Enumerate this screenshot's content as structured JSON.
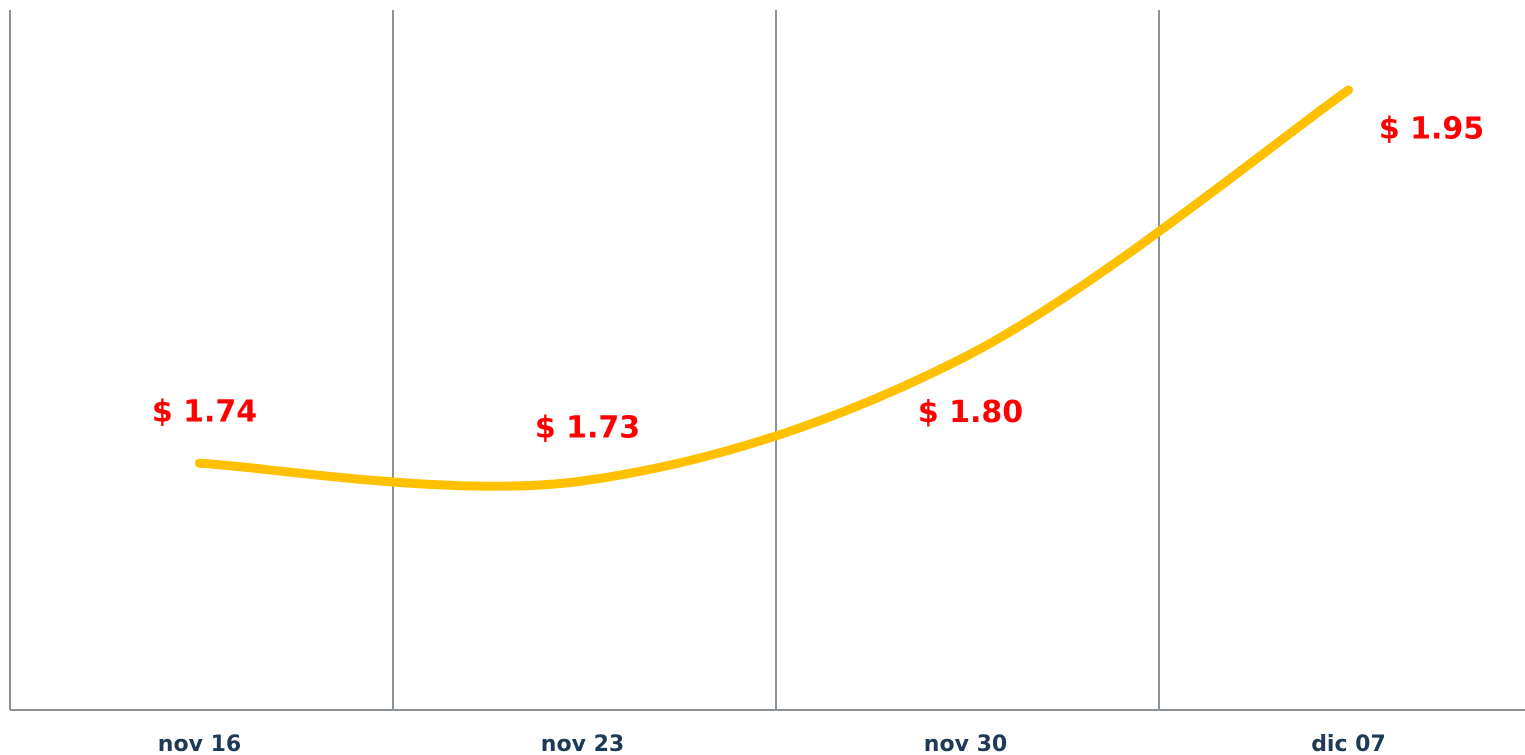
{
  "chart_data": {
    "type": "line",
    "categories": [
      "nov 16",
      "nov 23",
      "nov 30",
      "dic 07"
    ],
    "values": [
      1.74,
      1.73,
      1.8,
      1.95
    ],
    "value_labels": [
      "$ 1.74",
      "$ 1.73",
      "$ 1.80",
      "$ 1.95"
    ],
    "color": "#ffc000",
    "label_color": "#ff0000"
  }
}
